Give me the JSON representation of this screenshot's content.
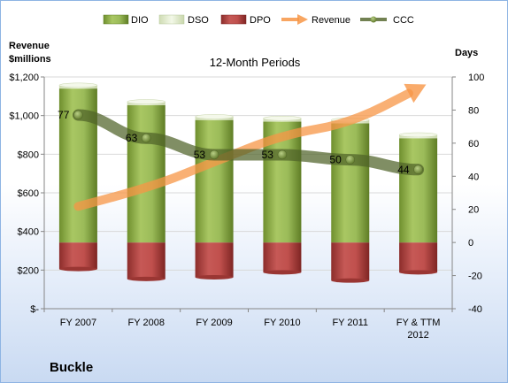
{
  "chart_data": {
    "type": "bar",
    "title": "12-Month Periods",
    "company": "Buckle",
    "left_axis_label": [
      "Revenue",
      "$millions"
    ],
    "right_axis_label": "Days",
    "left_axis": {
      "min": 0,
      "max": 1200,
      "ticks": [
        0,
        200,
        400,
        600,
        800,
        1000,
        1200
      ],
      "tick_labels": [
        "$-",
        "$200",
        "$400",
        "$600",
        "$800",
        "$1,000",
        "$1,200"
      ]
    },
    "right_axis": {
      "min": -40,
      "max": 100,
      "ticks": [
        -40,
        -20,
        0,
        20,
        40,
        60,
        80,
        100
      ],
      "tick_labels": [
        "-40",
        "-20",
        "0",
        "20",
        "40",
        "60",
        "80",
        "100"
      ]
    },
    "categories": [
      [
        "FY 2007"
      ],
      [
        "FY 2008"
      ],
      [
        "FY 2009"
      ],
      [
        "FY 2010"
      ],
      [
        "FY 2011"
      ],
      [
        "FY & TTM",
        "2012"
      ]
    ],
    "series": [
      {
        "name": "DIO",
        "type": "stacked-bar",
        "axis": "right",
        "color": "#9bbb59",
        "values": [
          93,
          83,
          74,
          73,
          72,
          63
        ]
      },
      {
        "name": "DSO",
        "type": "stacked-bar",
        "axis": "right",
        "color": "#eaf1dd",
        "values": [
          2,
          2,
          2,
          2,
          2,
          2
        ]
      },
      {
        "name": "DPO",
        "type": "bar",
        "axis": "right",
        "color": "#c0504d",
        "values": [
          -16,
          -22,
          -21,
          -18,
          -23,
          -18
        ]
      },
      {
        "name": "Revenue",
        "type": "arrow-line",
        "axis": "left",
        "color": "#f79646",
        "values": [
          530,
          620,
          760,
          900,
          960,
          1140
        ]
      },
      {
        "name": "CCC",
        "type": "line",
        "axis": "right",
        "color": "#4f6228",
        "values": [
          77,
          63,
          53,
          53,
          50,
          44
        ],
        "data_labels": [
          "77",
          "63",
          "53",
          "53",
          "50",
          "44"
        ]
      }
    ],
    "legend_position": "top"
  }
}
